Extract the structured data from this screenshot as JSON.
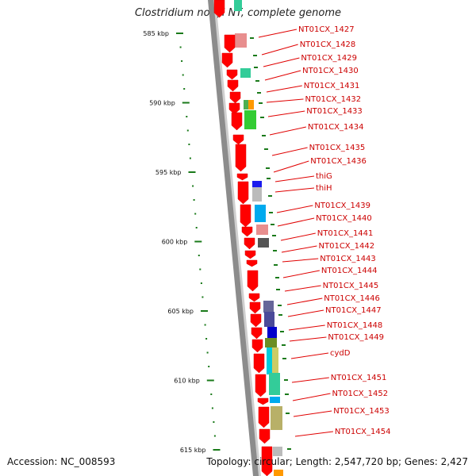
{
  "title": "Clostridium novyi NT, complete genome",
  "footer": {
    "accession": "Accession: NC_008593",
    "summary": "Topology: circular; Length: 2,547,720 bp; Genes: 2,427"
  },
  "colors": {
    "backbone": "#8c8c8c",
    "gene_arrow": "#ff0000",
    "label": "#cc0000",
    "tick": "#1a7a1a"
  },
  "scale_ticks": [
    {
      "label": "585 kbp",
      "kbp": 585
    },
    {
      "label": "590 kbp",
      "kbp": 590
    },
    {
      "label": "595 kbp",
      "kbp": 595
    },
    {
      "label": "600 kbp",
      "kbp": 600
    },
    {
      "label": "605 kbp",
      "kbp": 605
    },
    {
      "label": "610 kbp",
      "kbp": 610
    },
    {
      "label": "615 kbp",
      "kbp": 615
    }
  ],
  "genes": [
    "NT01CX_1427",
    "NT01CX_1428",
    "NT01CX_1429",
    "NT01CX_1430",
    "NT01CX_1431",
    "NT01CX_1432",
    "NT01CX_1433",
    "NT01CX_1434",
    "NT01CX_1435",
    "NT01CX_1436",
    "thiG",
    "thiH",
    "NT01CX_1439",
    "NT01CX_1440",
    "NT01CX_1441",
    "NT01CX_1442",
    "NT01CX_1443",
    "NT01CX_1444",
    "NT01CX_1445",
    "NT01CX_1446",
    "NT01CX_1447",
    "NT01CX_1448",
    "NT01CX_1449",
    "cydD",
    "NT01CX_1451",
    "NT01CX_1452",
    "NT01CX_1453",
    "NT01CX_1454"
  ]
}
